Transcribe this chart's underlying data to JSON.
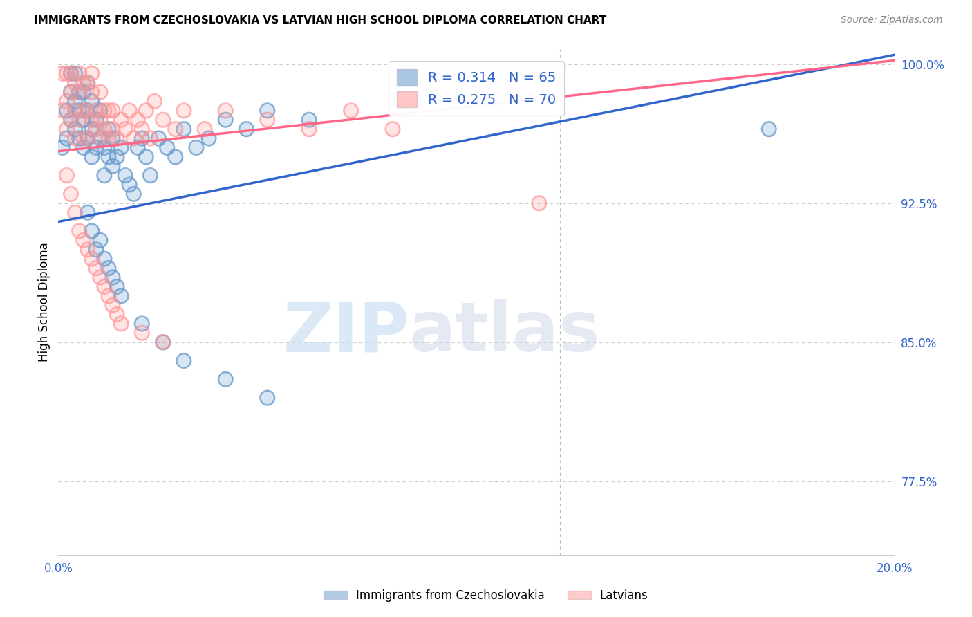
{
  "title": "IMMIGRANTS FROM CZECHOSLOVAKIA VS LATVIAN HIGH SCHOOL DIPLOMA CORRELATION CHART",
  "source": "Source: ZipAtlas.com",
  "ylabel": "High School Diploma",
  "xlim": [
    0.0,
    0.2
  ],
  "ylim": [
    0.735,
    1.008
  ],
  "legend_blue_label": "R = 0.314   N = 65",
  "legend_pink_label": "R = 0.275   N = 70",
  "blue_color": "#6699CC",
  "pink_color": "#FF9999",
  "trend_blue_color": "#3366CC",
  "trend_pink_color": "#FF6688",
  "watermark_zip": "ZIP",
  "watermark_atlas": "atlas",
  "legend_label_blue": "Immigrants from Czechoslovakia",
  "legend_label_pink": "Latvians",
  "blue_x": [
    0.001,
    0.002,
    0.002,
    0.003,
    0.003,
    0.003,
    0.004,
    0.004,
    0.004,
    0.005,
    0.005,
    0.005,
    0.006,
    0.006,
    0.006,
    0.007,
    0.007,
    0.007,
    0.008,
    0.008,
    0.008,
    0.009,
    0.009,
    0.01,
    0.01,
    0.011,
    0.011,
    0.012,
    0.012,
    0.013,
    0.013,
    0.014,
    0.015,
    0.016,
    0.017,
    0.018,
    0.019,
    0.02,
    0.021,
    0.022,
    0.024,
    0.026,
    0.028,
    0.03,
    0.033,
    0.036,
    0.04,
    0.045,
    0.05,
    0.06,
    0.007,
    0.008,
    0.009,
    0.01,
    0.011,
    0.012,
    0.013,
    0.014,
    0.015,
    0.02,
    0.025,
    0.03,
    0.04,
    0.05,
    0.17
  ],
  "blue_y": [
    0.955,
    0.975,
    0.96,
    0.985,
    0.97,
    0.995,
    0.965,
    0.98,
    0.995,
    0.96,
    0.975,
    0.985,
    0.955,
    0.97,
    0.985,
    0.96,
    0.975,
    0.99,
    0.95,
    0.965,
    0.98,
    0.97,
    0.955,
    0.96,
    0.975,
    0.94,
    0.955,
    0.95,
    0.965,
    0.945,
    0.96,
    0.95,
    0.955,
    0.94,
    0.935,
    0.93,
    0.955,
    0.96,
    0.95,
    0.94,
    0.96,
    0.955,
    0.95,
    0.965,
    0.955,
    0.96,
    0.97,
    0.965,
    0.975,
    0.97,
    0.92,
    0.91,
    0.9,
    0.905,
    0.895,
    0.89,
    0.885,
    0.88,
    0.875,
    0.86,
    0.85,
    0.84,
    0.83,
    0.82,
    0.965
  ],
  "pink_x": [
    0.001,
    0.001,
    0.002,
    0.002,
    0.002,
    0.003,
    0.003,
    0.003,
    0.004,
    0.004,
    0.004,
    0.005,
    0.005,
    0.005,
    0.006,
    0.006,
    0.006,
    0.007,
    0.007,
    0.007,
    0.008,
    0.008,
    0.008,
    0.009,
    0.009,
    0.01,
    0.01,
    0.01,
    0.011,
    0.011,
    0.012,
    0.012,
    0.013,
    0.013,
    0.014,
    0.015,
    0.016,
    0.017,
    0.018,
    0.019,
    0.02,
    0.021,
    0.022,
    0.023,
    0.025,
    0.028,
    0.03,
    0.035,
    0.04,
    0.05,
    0.06,
    0.07,
    0.08,
    0.002,
    0.003,
    0.004,
    0.005,
    0.006,
    0.007,
    0.008,
    0.009,
    0.01,
    0.011,
    0.012,
    0.013,
    0.014,
    0.015,
    0.02,
    0.025,
    0.115
  ],
  "pink_y": [
    0.975,
    0.995,
    0.98,
    0.965,
    0.995,
    0.985,
    0.97,
    0.995,
    0.975,
    0.99,
    0.96,
    0.97,
    0.985,
    0.995,
    0.975,
    0.99,
    0.96,
    0.975,
    0.99,
    0.96,
    0.97,
    0.985,
    0.995,
    0.975,
    0.965,
    0.97,
    0.985,
    0.96,
    0.965,
    0.975,
    0.96,
    0.975,
    0.965,
    0.975,
    0.96,
    0.97,
    0.965,
    0.975,
    0.96,
    0.97,
    0.965,
    0.975,
    0.96,
    0.98,
    0.97,
    0.965,
    0.975,
    0.965,
    0.975,
    0.97,
    0.965,
    0.975,
    0.965,
    0.94,
    0.93,
    0.92,
    0.91,
    0.905,
    0.9,
    0.895,
    0.89,
    0.885,
    0.88,
    0.875,
    0.87,
    0.865,
    0.86,
    0.855,
    0.85,
    0.925
  ]
}
